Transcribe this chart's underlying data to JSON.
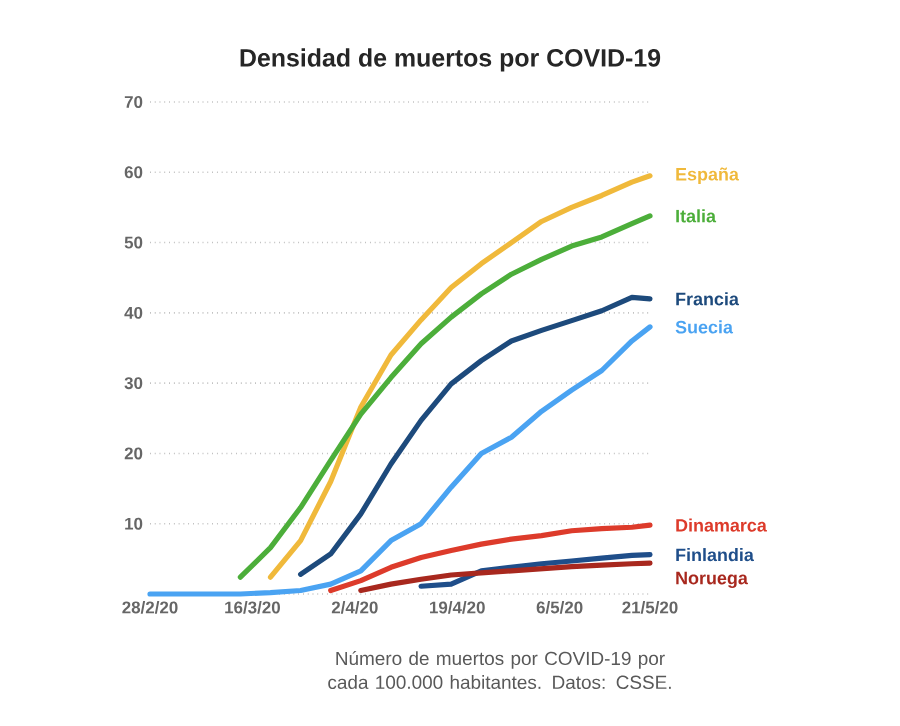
{
  "chart_data": {
    "type": "line",
    "title": "Densidad de muertos por COVID-19",
    "x": [
      "2020-02-28",
      "2020-03-04",
      "2020-03-09",
      "2020-03-14",
      "2020-03-19",
      "2020-03-24",
      "2020-03-29",
      "2020-04-03",
      "2020-04-08",
      "2020-04-13",
      "2020-04-18",
      "2020-04-23",
      "2020-04-28",
      "2020-05-03",
      "2020-05-08",
      "2020-05-13",
      "2020-05-18",
      "2020-05-21"
    ],
    "series": [
      {
        "name": "España",
        "color": "#f0b93b",
        "values": [
          null,
          null,
          null,
          null,
          2.4,
          7.6,
          16,
          26.6,
          34,
          39,
          43.6,
          47,
          50,
          53,
          55,
          56.7,
          58.6,
          59.5
        ]
      },
      {
        "name": "Italia",
        "color": "#4cae3a",
        "values": [
          null,
          null,
          null,
          2.4,
          6.6,
          12.3,
          19,
          25.6,
          30.8,
          35.6,
          39.4,
          42.7,
          45.5,
          47.6,
          49.5,
          50.8,
          52.7,
          53.8
        ]
      },
      {
        "name": "Francia",
        "color": "#1d4a7c",
        "values": [
          null,
          null,
          null,
          null,
          null,
          2.8,
          5.7,
          11.4,
          18.5,
          24.7,
          29.9,
          33.2,
          36,
          37.5,
          38.9,
          40.3,
          42.2,
          42
        ]
      },
      {
        "name": "Dinamarca",
        "color": "#dd3b2b",
        "values": [
          null,
          null,
          null,
          null,
          null,
          null,
          0.5,
          1.9,
          3.8,
          5.2,
          6.2,
          7.1,
          7.8,
          8.3,
          9,
          9.3,
          9.5,
          9.8
        ]
      },
      {
        "name": "Finlandia",
        "color": "#1f4e8a",
        "values": [
          null,
          null,
          null,
          null,
          null,
          null,
          null,
          null,
          null,
          1.1,
          1.4,
          3.3,
          3.8,
          4.3,
          4.7,
          5.1,
          5.5,
          5.6
        ]
      },
      {
        "name": "Noruega",
        "color": "#a8281e",
        "values": [
          null,
          null,
          null,
          null,
          null,
          null,
          null,
          0.5,
          1.4,
          2.1,
          2.7,
          3,
          3.3,
          3.6,
          3.9,
          4.1,
          4.3,
          4.4
        ]
      },
      {
        "name": "Suecia",
        "color": "#4aa3f2",
        "values": [
          0,
          0,
          0,
          0,
          0.2,
          0.5,
          1.4,
          3.3,
          7.6,
          10,
          15.2,
          20,
          22.3,
          26,
          29,
          31.8,
          36,
          38
        ]
      }
    ],
    "xlim": [
      "2020-02-28",
      "2020-05-21"
    ],
    "xticks": [
      {
        "value": "2020-02-28",
        "label": "28/2/20"
      },
      {
        "value": "2020-03-16",
        "label": "16/3/20"
      },
      {
        "value": "2020-04-02",
        "label": "2/4/20"
      },
      {
        "value": "2020-04-19",
        "label": "19/4/20"
      },
      {
        "value": "2020-05-06",
        "label": "6/5/20"
      },
      {
        "value": "2020-05-21",
        "label": "21/5/20"
      }
    ],
    "ylim": [
      0,
      70
    ],
    "yticks": [
      {
        "value": 0,
        "label": null
      },
      10,
      20,
      30,
      40,
      50,
      60,
      70
    ],
    "grid": "y",
    "annotations": [
      "Número de muertos por COVID-19 por cada 100.000 habitantes. Datos: CSSE."
    ]
  }
}
